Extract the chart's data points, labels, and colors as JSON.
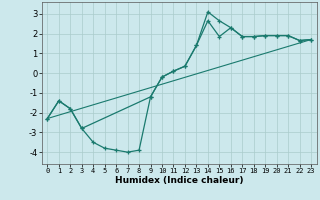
{
  "xlabel": "Humidex (Indice chaleur)",
  "background_color": "#cce8ec",
  "grid_color": "#aacccc",
  "line_color": "#1a7a6e",
  "xlim": [
    -0.5,
    23.5
  ],
  "ylim": [
    -4.6,
    3.6
  ],
  "xticks": [
    0,
    1,
    2,
    3,
    4,
    5,
    6,
    7,
    8,
    9,
    10,
    11,
    12,
    13,
    14,
    15,
    16,
    17,
    18,
    19,
    20,
    21,
    22,
    23
  ],
  "yticks": [
    -4,
    -3,
    -2,
    -1,
    0,
    1,
    2,
    3
  ],
  "line1_x": [
    0,
    1,
    2,
    3,
    4,
    5,
    6,
    7,
    8,
    9,
    10,
    11,
    12,
    13,
    14,
    15,
    16,
    17,
    18,
    19,
    20,
    21,
    22,
    23
  ],
  "line1_y": [
    -2.3,
    -1.4,
    -1.8,
    -2.8,
    -3.5,
    -3.8,
    -3.9,
    -4.0,
    -3.9,
    -1.2,
    -0.2,
    0.1,
    0.35,
    1.4,
    3.1,
    2.65,
    2.3,
    1.85,
    1.85,
    1.9,
    1.9,
    1.9,
    1.65,
    1.7
  ],
  "line2_x": [
    0,
    1,
    2,
    3,
    9,
    10,
    11,
    12,
    13,
    14,
    15,
    16,
    17,
    18,
    19,
    20,
    21,
    22,
    23
  ],
  "line2_y": [
    -2.3,
    -1.4,
    -1.8,
    -2.8,
    -1.2,
    -0.2,
    0.1,
    0.35,
    1.4,
    2.65,
    1.85,
    2.3,
    1.85,
    1.85,
    1.9,
    1.9,
    1.9,
    1.65,
    1.7
  ],
  "line3_x": [
    0,
    23
  ],
  "line3_y": [
    -2.3,
    1.7
  ]
}
